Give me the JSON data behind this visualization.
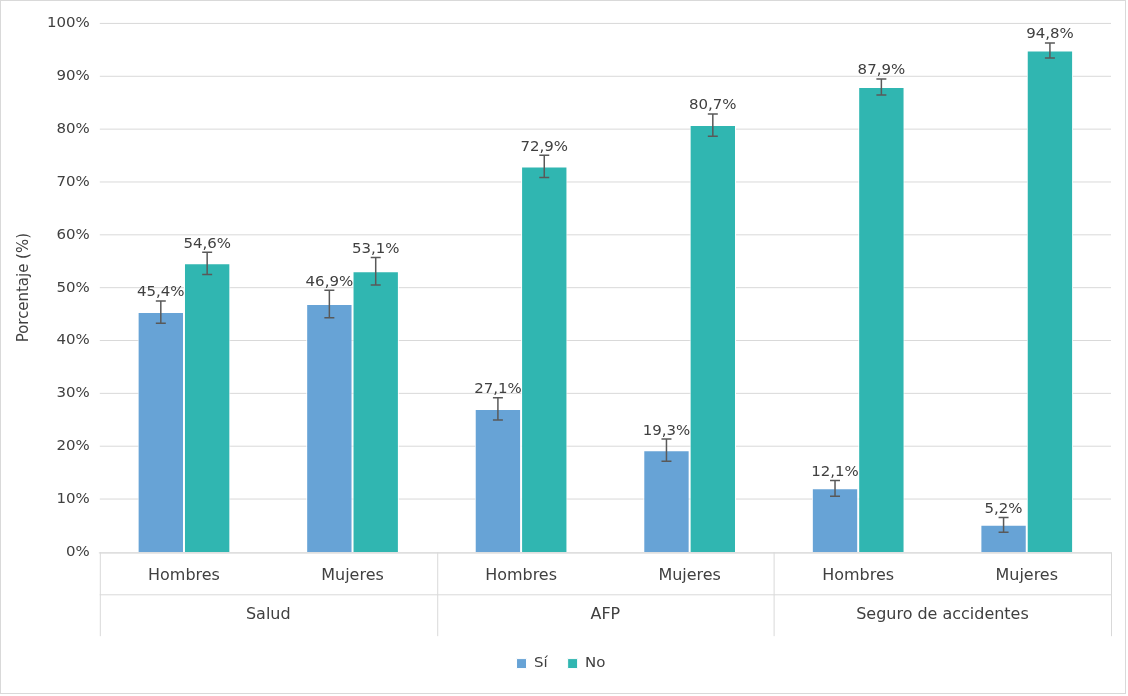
{
  "chart_data": {
    "type": "bar",
    "ylabel": "Porcentaje (%)",
    "categories": [
      "Hombres",
      "Mujeres",
      "Hombres",
      "Mujeres",
      "Hombres",
      "Mujeres"
    ],
    "annotations": [
      "Salud",
      "AFP",
      "Seguro de accidentes"
    ],
    "series": [
      {
        "name": "Sí",
        "color": "#67a3d6",
        "values": [
          45.4,
          46.9,
          27.1,
          19.3,
          12.1,
          5.2
        ],
        "errors": [
          2.1,
          2.6,
          2.1,
          2.1,
          1.5,
          1.4
        ],
        "value_labels": [
          "45,4%",
          "46,9%",
          "27,1%",
          "19,3%",
          "12,1%",
          "5,2%"
        ]
      },
      {
        "name": "No",
        "color": "#30b6b1",
        "values": [
          54.6,
          53.1,
          72.9,
          80.7,
          87.9,
          94.8
        ],
        "errors": [
          2.1,
          2.6,
          2.1,
          2.1,
          1.5,
          1.4
        ],
        "value_labels": [
          "54,6%",
          "53,1%",
          "72,9%",
          "80,7%",
          "87,9%",
          "94,8%"
        ]
      }
    ],
    "ylim": [
      0,
      100
    ],
    "yticks": [
      {
        "value": 0,
        "label": "0%"
      },
      {
        "value": 10,
        "label": "10%"
      },
      {
        "value": 20,
        "label": "20%"
      },
      {
        "value": 30,
        "label": "30%"
      },
      {
        "value": 40,
        "label": "40%"
      },
      {
        "value": 50,
        "label": "50%"
      },
      {
        "value": 60,
        "label": "60%"
      },
      {
        "value": 70,
        "label": "70%"
      },
      {
        "value": 80,
        "label": "80%"
      },
      {
        "value": 90,
        "label": "90%"
      },
      {
        "value": 100,
        "label": "100%"
      }
    ],
    "grid": "y",
    "legend": "bottom"
  }
}
